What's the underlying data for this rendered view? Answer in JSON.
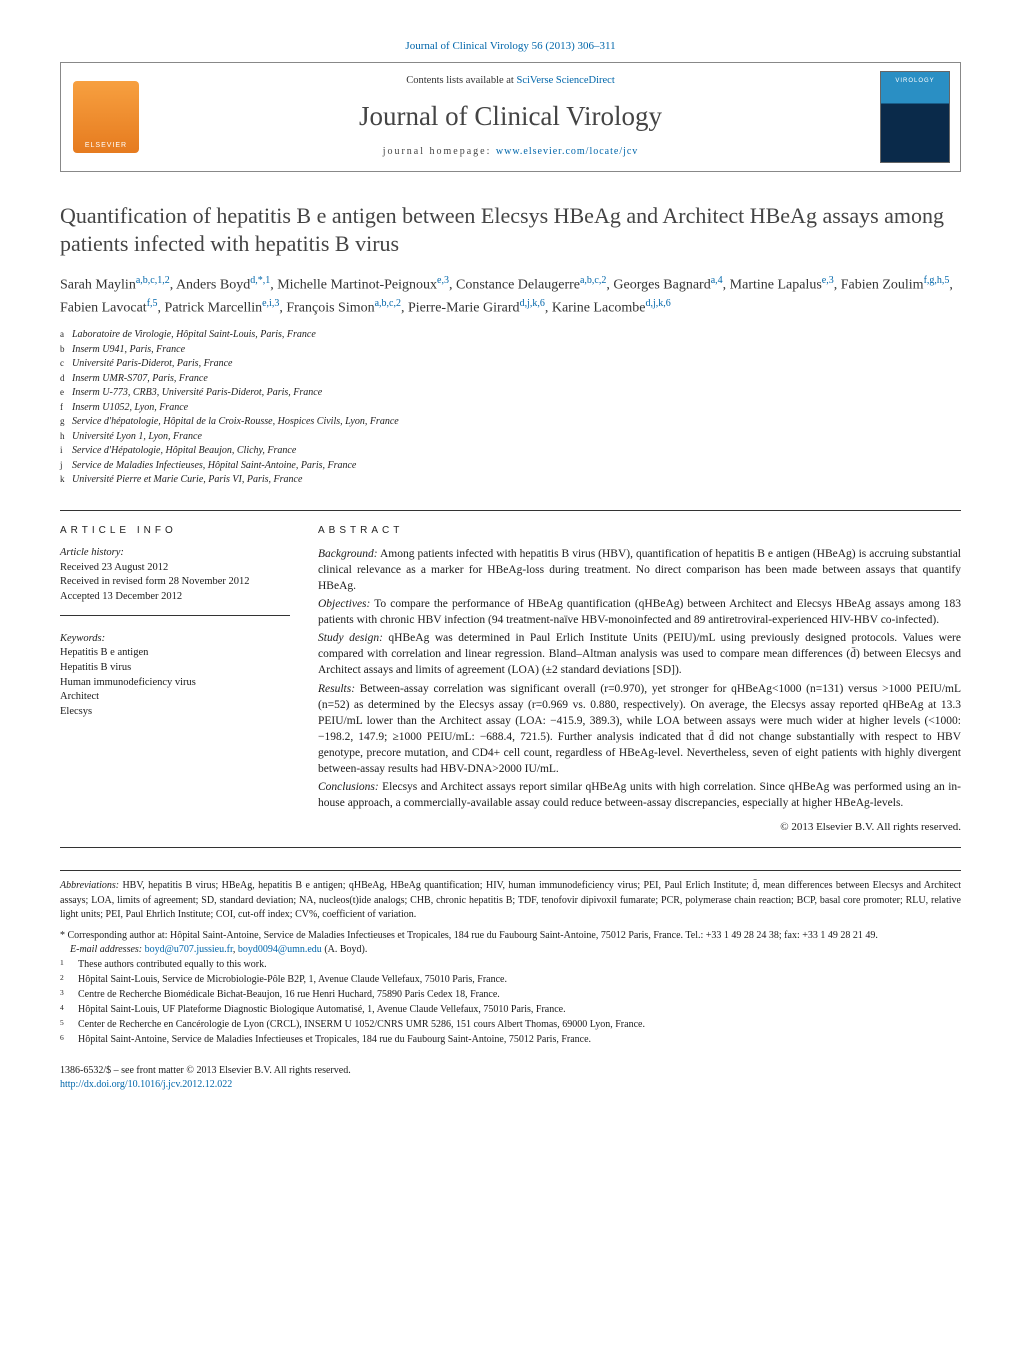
{
  "bibline": "Journal of Clinical Virology 56 (2013) 306–311",
  "header": {
    "contents_prefix": "Contents lists available at ",
    "contents_link": "SciVerse ScienceDirect",
    "journal_name": "Journal of Clinical Virology",
    "homepage_prefix": "journal homepage: ",
    "homepage_url": "www.elsevier.com/locate/jcv",
    "publisher": "ELSEVIER",
    "cover_label": "VIROLOGY"
  },
  "title": "Quantification of hepatitis B e antigen between Elecsys HBeAg and Architect HBeAg assays among patients infected with hepatitis B virus",
  "authors_html": "Sarah Maylin<sup class='sup'>a,b,c,1,2</sup>, Anders Boyd<sup class='sup'>d,*,1</sup>, Michelle Martinot-Peignoux<sup class='sup'>e,3</sup>, Constance Delaugerre<sup class='sup'>a,b,c,2</sup>, Georges Bagnard<sup class='sup'>a,4</sup>, Martine Lapalus<sup class='sup'>e,3</sup>, Fabien Zoulim<sup class='sup'>f,g,h,5</sup>, Fabien Lavocat<sup class='sup'>f,5</sup>, Patrick Marcellin<sup class='sup'>e,i,3</sup>, François Simon<sup class='sup'>a,b,c,2</sup>, Pierre-Marie Girard<sup class='sup'>d,j,k,6</sup>, Karine Lacombe<sup class='sup'>d,j,k,6</sup>",
  "affiliations": [
    {
      "tag": "a",
      "text": "Laboratoire de Virologie, Hôpital Saint-Louis, Paris, France"
    },
    {
      "tag": "b",
      "text": "Inserm U941, Paris, France"
    },
    {
      "tag": "c",
      "text": "Université Paris-Diderot, Paris, France"
    },
    {
      "tag": "d",
      "text": "Inserm UMR-S707, Paris, France"
    },
    {
      "tag": "e",
      "text": "Inserm U-773, CRB3, Université Paris-Diderot, Paris, France"
    },
    {
      "tag": "f",
      "text": "Inserm U1052, Lyon, France"
    },
    {
      "tag": "g",
      "text": "Service d'hépatologie, Hôpital de la Croix-Rousse, Hospices Civils, Lyon, France"
    },
    {
      "tag": "h",
      "text": "Université Lyon 1, Lyon, France"
    },
    {
      "tag": "i",
      "text": "Service d'Hépatologie, Hôpital Beaujon, Clichy, France"
    },
    {
      "tag": "j",
      "text": "Service de Maladies Infectieuses, Hôpital Saint-Antoine, Paris, France"
    },
    {
      "tag": "k",
      "text": "Université Pierre et Marie Curie, Paris VI, Paris, France"
    }
  ],
  "article_info": {
    "head": "article info",
    "history_label": "Article history:",
    "received": "Received 23 August 2012",
    "revised": "Received in revised form 28 November 2012",
    "accepted": "Accepted 13 December 2012",
    "keywords_label": "Keywords:",
    "keywords": [
      "Hepatitis B e antigen",
      "Hepatitis B virus",
      "Human immunodeficiency virus",
      "Architect",
      "Elecsys"
    ]
  },
  "abstract": {
    "head": "abstract",
    "sections": [
      {
        "label": "Background:",
        "text": "Among patients infected with hepatitis B virus (HBV), quantification of hepatitis B e antigen (HBeAg) is accruing substantial clinical relevance as a marker for HBeAg-loss during treatment. No direct comparison has been made between assays that quantify HBeAg."
      },
      {
        "label": "Objectives:",
        "text": "To compare the performance of HBeAg quantification (qHBeAg) between Architect and Elecsys HBeAg assays among 183 patients with chronic HBV infection (94 treatment-naïve HBV-monoinfected and 89 antiretroviral-experienced HIV-HBV co-infected)."
      },
      {
        "label": "Study design:",
        "text": "qHBeAg was determined in Paul Erlich Institute Units (PEIU)/mL using previously designed protocols. Values were compared with correlation and linear regression. Bland–Altman analysis was used to compare mean differences (d̄) between Elecsys and Architect assays and limits of agreement (LOA) (±2 standard deviations [SD])."
      },
      {
        "label": "Results:",
        "text": "Between-assay correlation was significant overall (r=0.970), yet stronger for qHBeAg<1000 (n=131) versus >1000 PEIU/mL (n=52) as determined by the Elecsys assay (r=0.969 vs. 0.880, respectively). On average, the Elecsys assay reported qHBeAg at 13.3 PEIU/mL lower than the Architect assay (LOA: −415.9, 389.3), while LOA between assays were much wider at higher levels (<1000: −198.2, 147.9; ≥1000 PEIU/mL: −688.4, 721.5). Further analysis indicated that d̄ did not change substantially with respect to HBV genotype, precore mutation, and CD4+ cell count, regardless of HBeAg-level. Nevertheless, seven of eight patients with highly divergent between-assay results had HBV-DNA>2000 IU/mL."
      },
      {
        "label": "Conclusions:",
        "text": "Elecsys and Architect assays report similar qHBeAg units with high correlation. Since qHBeAg was performed using an in-house approach, a commercially-available assay could reduce between-assay discrepancies, especially at higher HBeAg-levels."
      }
    ],
    "copyright": "© 2013 Elsevier B.V. All rights reserved."
  },
  "footer": {
    "abbrev_label": "Abbreviations:",
    "abbrev_text": "HBV, hepatitis B virus; HBeAg, hepatitis B e antigen; qHBeAg, HBeAg quantification; HIV, human immunodeficiency virus; PEI, Paul Erlich Institute; d̄, mean differences between Elecsys and Architect assays; LOA, limits of agreement; SD, standard deviation; NA, nucleos(t)ide analogs; CHB, chronic hepatitis B; TDF, tenofovir dipivoxil fumarate; PCR, polymerase chain reaction; BCP, basal core promoter; RLU, relative light units; PEI, Paul Ehrlich Institute; COI, cut-off index; CV%, coefficient of variation.",
    "corr_label": "* Corresponding author at:",
    "corr_text": "Hôpital Saint-Antoine, Service de Maladies Infectieuses et Tropicales, 184 rue du Faubourg Saint-Antoine, 75012 Paris, France. Tel.: +33 1 49 28 24 38; fax: +33 1 49 28 21 49.",
    "email_label": "E-mail addresses:",
    "email1": "boyd@u707.jussieu.fr",
    "email2": "boyd0094@umn.edu",
    "email_person": "(A. Boyd).",
    "notes": [
      {
        "tag": "1",
        "text": "These authors contributed equally to this work."
      },
      {
        "tag": "2",
        "text": "Hôpital Saint-Louis, Service de Microbiologie-Pôle B2P, 1, Avenue Claude Vellefaux, 75010 Paris, France."
      },
      {
        "tag": "3",
        "text": "Centre de Recherche Biomédicale Bichat-Beaujon, 16 rue Henri Huchard, 75890 Paris Cedex 18, France."
      },
      {
        "tag": "4",
        "text": "Hôpital Saint-Louis, UF Plateforme Diagnostic Biologique Automatisé, 1, Avenue Claude Vellefaux, 75010 Paris, France."
      },
      {
        "tag": "5",
        "text": "Center de Recherche en Cancérologie de Lyon (CRCL), INSERM U 1052/CNRS UMR 5286, 151 cours Albert Thomas, 69000 Lyon, France."
      },
      {
        "tag": "6",
        "text": "Hôpital Saint-Antoine, Service de Maladies Infectieuses et Tropicales, 184 rue du Faubourg Saint-Antoine, 75012 Paris, France."
      }
    ],
    "issn": "1386-6532/$ – see front matter © 2013 Elsevier B.V. All rights reserved.",
    "doi": "http://dx.doi.org/10.1016/j.jcv.2012.12.022"
  }
}
